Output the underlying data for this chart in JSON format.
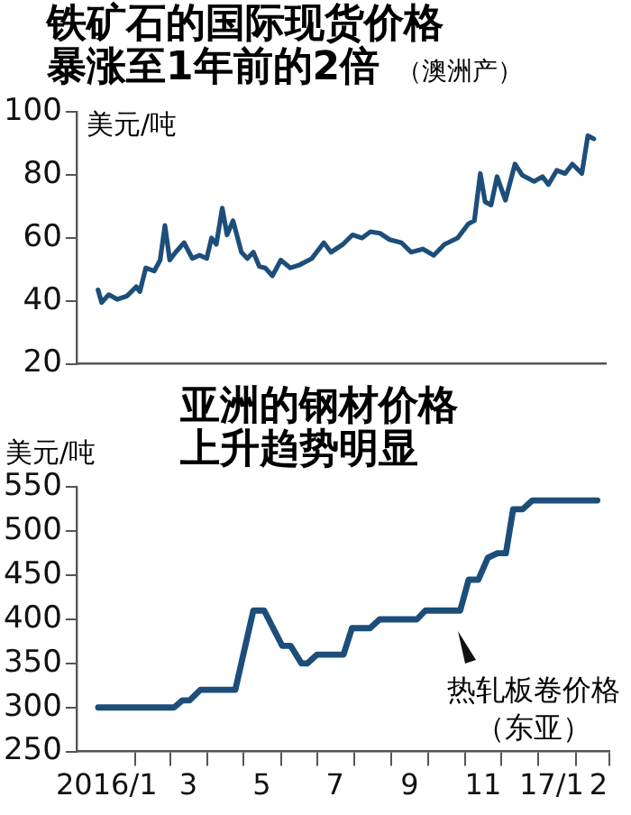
{
  "chart_data": [
    {
      "type": "line",
      "title": "铁矿石的国际现货价格暴涨至1年前的2倍",
      "subtitle": "（澳洲产）",
      "ylabel": "美元/吨",
      "color": "#1d4e7a",
      "tick_labels": "y",
      "xlim": [
        "2015-12-14",
        "2017-03-01"
      ],
      "ylim": [
        20,
        100
      ],
      "yticks": [
        20,
        40,
        60,
        80,
        100
      ],
      "x": [
        "2016-01-01",
        "2016-01-04",
        "2016-01-10",
        "2016-01-17",
        "2016-01-25",
        "2016-02-02",
        "2016-02-05",
        "2016-02-10",
        "2016-02-17",
        "2016-02-22",
        "2016-02-26",
        "2016-03-01",
        "2016-03-06",
        "2016-03-13",
        "2016-03-20",
        "2016-03-26",
        "2016-04-01",
        "2016-04-05",
        "2016-04-09",
        "2016-04-14",
        "2016-04-18",
        "2016-04-23",
        "2016-04-30",
        "2016-05-05",
        "2016-05-10",
        "2016-05-15",
        "2016-05-20",
        "2016-05-26",
        "2016-06-02",
        "2016-06-10",
        "2016-06-18",
        "2016-06-28",
        "2016-07-08",
        "2016-07-14",
        "2016-07-24",
        "2016-08-01",
        "2016-08-09",
        "2016-08-16",
        "2016-08-24",
        "2016-09-01",
        "2016-09-11",
        "2016-09-19",
        "2016-09-29",
        "2016-10-08",
        "2016-10-17",
        "2016-10-28",
        "2016-11-06",
        "2016-11-11",
        "2016-11-16",
        "2016-11-20",
        "2016-11-25",
        "2016-11-30",
        "2016-12-07",
        "2016-12-15",
        "2016-12-21",
        "2016-12-31",
        "2017-01-07",
        "2017-01-12",
        "2017-01-19",
        "2017-01-26",
        "2017-02-01",
        "2017-02-09",
        "2017-02-14",
        "2017-02-19"
      ],
      "values": [
        43.5,
        39.5,
        42,
        40.5,
        41.5,
        44.5,
        43,
        50.5,
        49.5,
        53,
        64,
        53,
        55.5,
        58.5,
        53.5,
        54.5,
        53.5,
        60,
        58,
        69.5,
        61,
        65.5,
        55.5,
        53.5,
        55.5,
        51,
        50.5,
        48,
        53,
        50.5,
        51.5,
        53.5,
        58.5,
        55.5,
        58,
        61,
        60,
        62,
        61.5,
        59.5,
        58.5,
        55.5,
        56.5,
        54.5,
        58,
        60,
        64.5,
        65.5,
        80.5,
        71.5,
        70.5,
        79.5,
        72,
        83.5,
        80,
        78,
        79.5,
        77,
        81.5,
        80.5,
        83.5,
        80.5,
        92.5,
        91.5
      ]
    },
    {
      "type": "line",
      "title": "亚洲的钢材价格上升趋势明显",
      "ylabel": "美元/吨",
      "color": "#1d4e7a",
      "xlim": [
        "2015-12-14",
        "2017-03-01"
      ],
      "ylim": [
        250,
        550
      ],
      "yticks": [
        250,
        300,
        350,
        400,
        450,
        500,
        550
      ],
      "xticks": [
        {
          "value": "2016-01-08",
          "label": "2016/1"
        },
        {
          "value": "2016-02-01",
          "label": null
        },
        {
          "value": "2016-03-01",
          "label": null
        },
        {
          "value": "2016-03-16",
          "label": "3"
        },
        {
          "value": "2016-04-01",
          "label": null
        },
        {
          "value": "2016-05-01",
          "label": null
        },
        {
          "value": "2016-05-16",
          "label": "5"
        },
        {
          "value": "2016-06-01",
          "label": null
        },
        {
          "value": "2016-07-01",
          "label": null
        },
        {
          "value": "2016-07-16",
          "label": "7"
        },
        {
          "value": "2016-08-01",
          "label": null
        },
        {
          "value": "2016-09-01",
          "label": null
        },
        {
          "value": "2016-09-16",
          "label": "9"
        },
        {
          "value": "2016-10-01",
          "label": null
        },
        {
          "value": "2016-11-01",
          "label": null
        },
        {
          "value": "2016-11-16",
          "label": "11"
        },
        {
          "value": "2016-12-01",
          "label": null
        },
        {
          "value": "2017-01-01",
          "label": null
        },
        {
          "value": "2017-01-12",
          "label": "17/1"
        },
        {
          "value": "2017-02-01",
          "label": null
        },
        {
          "value": "2017-02-20",
          "label": "2"
        },
        {
          "value": "2017-03-01",
          "label": null
        }
      ],
      "x": [
        "2016-01-01",
        "2016-03-04",
        "2016-03-11",
        "2016-03-17",
        "2016-03-26",
        "2016-04-24",
        "2016-05-09",
        "2016-05-18",
        "2016-06-02",
        "2016-06-09",
        "2016-06-18",
        "2016-06-23",
        "2016-07-01",
        "2016-07-23",
        "2016-07-30",
        "2016-08-14",
        "2016-08-22",
        "2016-09-22",
        "2016-09-29",
        "2016-10-28",
        "2016-11-04",
        "2016-11-12",
        "2016-11-20",
        "2016-11-28",
        "2016-12-05",
        "2016-12-11",
        "2016-12-19",
        "2016-12-27",
        "2017-02-19"
      ],
      "values": [
        300,
        300,
        308,
        308,
        320,
        320,
        410,
        410,
        370,
        370,
        350,
        350,
        360,
        360,
        390,
        390,
        400,
        400,
        410,
        410,
        445,
        445,
        470,
        475,
        475,
        525,
        525,
        535,
        535
      ],
      "annotations": [
        "热轧板卷价格（东亚）"
      ]
    }
  ]
}
